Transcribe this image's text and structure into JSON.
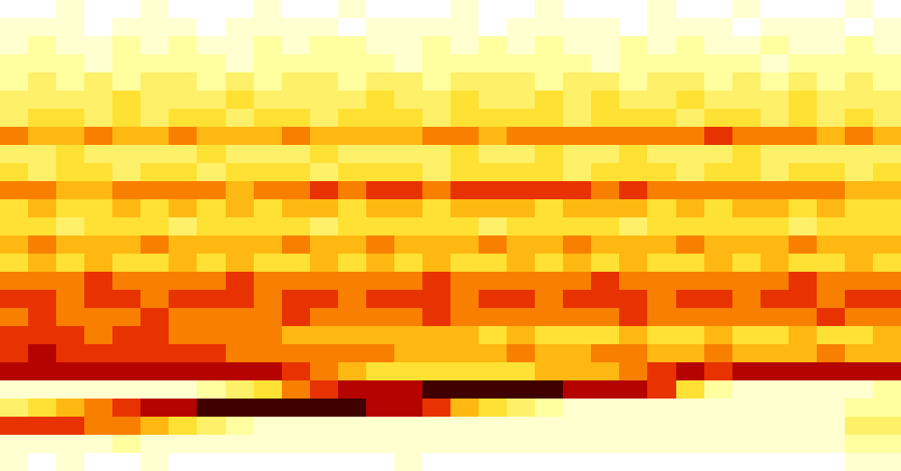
{
  "chart_data": {
    "type": "heatmap",
    "zlim": [
      0,
      9
    ],
    "cells": [
      [
        0,
        0,
        1,
        0,
        0,
        1,
        0,
        0,
        0,
        1,
        0,
        0,
        1,
        0,
        0,
        0,
        1,
        0,
        0,
        1,
        0,
        0,
        0,
        1,
        0,
        0,
        1,
        0,
        0,
        0,
        1,
        0
      ],
      [
        1,
        1,
        1,
        0,
        1,
        1,
        1,
        0,
        1,
        1,
        1,
        1,
        0,
        1,
        1,
        1,
        1,
        0,
        1,
        1,
        1,
        1,
        0,
        1,
        1,
        1,
        0,
        1,
        1,
        1,
        0,
        1
      ],
      [
        1,
        2,
        1,
        1,
        2,
        1,
        2,
        1,
        1,
        2,
        1,
        2,
        2,
        1,
        1,
        2,
        1,
        2,
        1,
        2,
        1,
        1,
        2,
        1,
        2,
        1,
        1,
        2,
        1,
        1,
        2,
        1
      ],
      [
        2,
        2,
        2,
        1,
        2,
        2,
        2,
        2,
        1,
        2,
        2,
        2,
        2,
        2,
        1,
        2,
        2,
        2,
        2,
        2,
        2,
        1,
        2,
        2,
        2,
        2,
        2,
        1,
        2,
        2,
        2,
        2
      ],
      [
        2,
        3,
        2,
        3,
        2,
        3,
        3,
        2,
        3,
        2,
        3,
        3,
        2,
        3,
        3,
        2,
        3,
        3,
        3,
        2,
        3,
        3,
        2,
        3,
        3,
        2,
        3,
        2,
        3,
        2,
        3,
        2
      ],
      [
        3,
        3,
        3,
        3,
        4,
        3,
        3,
        3,
        4,
        3,
        3,
        3,
        3,
        4,
        3,
        3,
        4,
        3,
        3,
        4,
        3,
        4,
        3,
        3,
        4,
        3,
        3,
        3,
        4,
        3,
        3,
        3
      ],
      [
        3,
        4,
        4,
        3,
        4,
        3,
        4,
        4,
        3,
        4,
        4,
        3,
        4,
        4,
        4,
        3,
        4,
        4,
        4,
        4,
        3,
        4,
        4,
        4,
        3,
        4,
        4,
        3,
        4,
        3,
        4,
        3
      ],
      [
        6,
        5,
        5,
        6,
        5,
        5,
        6,
        5,
        5,
        5,
        6,
        5,
        5,
        5,
        5,
        6,
        6,
        5,
        6,
        6,
        6,
        6,
        6,
        6,
        6,
        7,
        6,
        6,
        6,
        5,
        6,
        5
      ],
      [
        3,
        3,
        4,
        3,
        3,
        3,
        3,
        4,
        3,
        3,
        3,
        4,
        3,
        3,
        3,
        3,
        4,
        3,
        3,
        4,
        3,
        3,
        4,
        3,
        3,
        3,
        4,
        3,
        3,
        3,
        3,
        3
      ],
      [
        4,
        3,
        4,
        4,
        3,
        4,
        4,
        3,
        4,
        4,
        4,
        3,
        4,
        4,
        4,
        3,
        4,
        4,
        4,
        4,
        3,
        4,
        4,
        4,
        3,
        4,
        4,
        3,
        4,
        4,
        3,
        4
      ],
      [
        6,
        6,
        5,
        5,
        6,
        6,
        6,
        6,
        5,
        6,
        6,
        7,
        6,
        7,
        7,
        6,
        7,
        7,
        7,
        7,
        7,
        6,
        7,
        6,
        6,
        6,
        6,
        6,
        6,
        6,
        5,
        5
      ],
      [
        4,
        5,
        4,
        4,
        5,
        4,
        5,
        4,
        5,
        4,
        5,
        5,
        4,
        5,
        5,
        4,
        5,
        5,
        5,
        4,
        5,
        5,
        5,
        4,
        5,
        4,
        5,
        5,
        4,
        5,
        4,
        4
      ],
      [
        4,
        4,
        3,
        4,
        4,
        4,
        3,
        4,
        4,
        4,
        4,
        3,
        4,
        4,
        4,
        4,
        4,
        3,
        4,
        4,
        4,
        4,
        3,
        4,
        4,
        4,
        4,
        4,
        3,
        4,
        4,
        4
      ],
      [
        5,
        6,
        5,
        5,
        5,
        6,
        5,
        5,
        5,
        5,
        6,
        5,
        5,
        6,
        5,
        5,
        5,
        6,
        5,
        5,
        6,
        5,
        5,
        5,
        6,
        5,
        5,
        5,
        6,
        5,
        5,
        5
      ],
      [
        4,
        5,
        4,
        5,
        4,
        4,
        5,
        4,
        5,
        4,
        4,
        5,
        4,
        5,
        4,
        5,
        4,
        4,
        5,
        4,
        5,
        4,
        5,
        4,
        4,
        5,
        4,
        5,
        4,
        4,
        5,
        4
      ],
      [
        6,
        6,
        6,
        7,
        6,
        6,
        6,
        6,
        7,
        6,
        6,
        6,
        6,
        6,
        6,
        7,
        6,
        6,
        6,
        6,
        6,
        7,
        6,
        6,
        6,
        6,
        6,
        6,
        7,
        6,
        6,
        6
      ],
      [
        7,
        7,
        6,
        7,
        7,
        6,
        7,
        7,
        7,
        6,
        7,
        7,
        6,
        7,
        7,
        7,
        6,
        7,
        7,
        6,
        7,
        7,
        7,
        6,
        7,
        7,
        6,
        7,
        7,
        6,
        7,
        7
      ],
      [
        6,
        7,
        6,
        6,
        6,
        7,
        6,
        6,
        6,
        6,
        7,
        6,
        6,
        6,
        6,
        7,
        6,
        6,
        6,
        6,
        6,
        6,
        7,
        6,
        6,
        6,
        6,
        6,
        6,
        7,
        6,
        6
      ],
      [
        7,
        7,
        7,
        6,
        7,
        7,
        6,
        6,
        6,
        6,
        5,
        5,
        5,
        5,
        5,
        5,
        5,
        4,
        5,
        4,
        4,
        4,
        5,
        4,
        4,
        5,
        4,
        4,
        5,
        4,
        4,
        5
      ],
      [
        7,
        8,
        7,
        7,
        7,
        7,
        7,
        7,
        6,
        6,
        6,
        6,
        6,
        6,
        5,
        5,
        5,
        5,
        6,
        5,
        5,
        6,
        6,
        5,
        5,
        6,
        5,
        5,
        5,
        6,
        5,
        5
      ],
      [
        8,
        8,
        8,
        8,
        8,
        8,
        8,
        8,
        8,
        8,
        7,
        6,
        5,
        4,
        4,
        4,
        4,
        4,
        4,
        5,
        5,
        5,
        6,
        7,
        8,
        7,
        8,
        8,
        8,
        8,
        8,
        8
      ],
      [
        1,
        1,
        1,
        1,
        1,
        1,
        1,
        2,
        3,
        4,
        6,
        7,
        8,
        8,
        8,
        9,
        9,
        9,
        9,
        9,
        8,
        8,
        8,
        7,
        4,
        2,
        1,
        1,
        1,
        1,
        1,
        2
      ],
      [
        3,
        4,
        5,
        6,
        7,
        8,
        8,
        9,
        9,
        9,
        9,
        9,
        9,
        8,
        8,
        7,
        5,
        4,
        3,
        2,
        1,
        1,
        1,
        1,
        1,
        1,
        1,
        1,
        1,
        1,
        2,
        2
      ],
      [
        7,
        7,
        7,
        6,
        6,
        5,
        4,
        3,
        2,
        1,
        1,
        1,
        1,
        1,
        1,
        1,
        1,
        1,
        1,
        1,
        1,
        1,
        1,
        1,
        1,
        1,
        1,
        1,
        1,
        1,
        3,
        3
      ],
      [
        1,
        1,
        1,
        1,
        2,
        1,
        1,
        1,
        1,
        1,
        1,
        1,
        1,
        1,
        1,
        1,
        1,
        1,
        1,
        1,
        1,
        1,
        1,
        1,
        1,
        1,
        1,
        1,
        1,
        1,
        2,
        2
      ],
      [
        1,
        0,
        1,
        0,
        0,
        1,
        0,
        0,
        0,
        0,
        0,
        0,
        0,
        0,
        1,
        0,
        0,
        0,
        0,
        0,
        0,
        0,
        0,
        0,
        0,
        0,
        0,
        0,
        0,
        0,
        1,
        1
      ]
    ]
  }
}
